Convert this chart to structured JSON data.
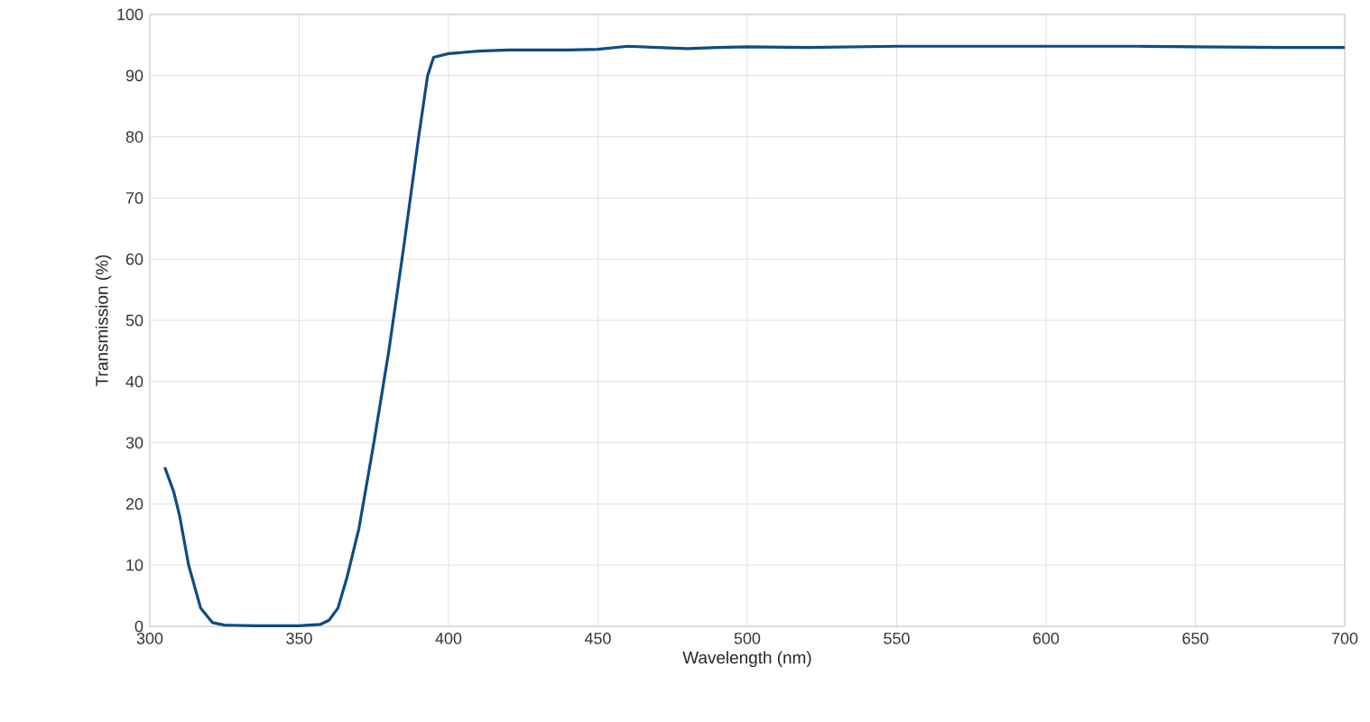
{
  "chart_data": {
    "type": "line",
    "xlabel": "Wavelength (nm)",
    "ylabel": "Transmission (%)",
    "xlim": [
      300,
      700
    ],
    "ylim": [
      0,
      100
    ],
    "xticks": [
      300,
      350,
      400,
      450,
      500,
      550,
      600,
      650,
      700
    ],
    "yticks": [
      0,
      10,
      20,
      30,
      40,
      50,
      60,
      70,
      80,
      90,
      100
    ],
    "grid": true,
    "series": [
      {
        "color": "#0f4c81",
        "x": [
          305,
          308,
          310,
          313,
          317,
          321,
          325,
          335,
          350,
          357,
          360,
          363,
          366,
          368,
          370,
          375,
          380,
          385,
          390,
          393,
          395,
          400,
          410,
          420,
          440,
          450,
          460,
          470,
          480,
          490,
          500,
          520,
          550,
          580,
          600,
          630,
          650,
          680,
          700
        ],
        "values": [
          26,
          22,
          18,
          10,
          3,
          0.6,
          0.2,
          0.1,
          0.1,
          0.3,
          1,
          3,
          8,
          12,
          16,
          30,
          45,
          62,
          80,
          90,
          93,
          93.6,
          94,
          94.2,
          94.2,
          94.3,
          94.8,
          94.6,
          94.4,
          94.6,
          94.7,
          94.6,
          94.8,
          94.8,
          94.8,
          94.8,
          94.7,
          94.6,
          94.6
        ]
      }
    ]
  }
}
